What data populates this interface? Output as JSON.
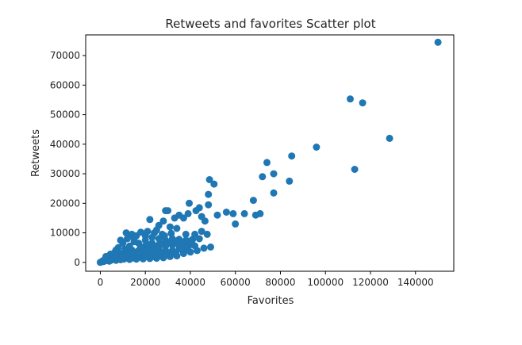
{
  "chart_data": {
    "type": "scatter",
    "title": "Retweets and favorites Scatter plot",
    "xlabel": "Favorites",
    "ylabel": "Retweets",
    "xlim": [
      -6500,
      157000
    ],
    "ylim": [
      -3000,
      77000
    ],
    "xticks": [
      0,
      20000,
      40000,
      60000,
      80000,
      100000,
      120000,
      140000
    ],
    "yticks": [
      0,
      10000,
      20000,
      30000,
      40000,
      50000,
      60000,
      70000
    ],
    "grid": false,
    "marker_color": "#1f77b4",
    "points": [
      [
        150000,
        74500
      ],
      [
        111000,
        55300
      ],
      [
        116500,
        54000
      ],
      [
        128500,
        42000
      ],
      [
        96000,
        39000
      ],
      [
        113000,
        31500
      ],
      [
        85000,
        36000
      ],
      [
        74000,
        33800
      ],
      [
        72000,
        29000
      ],
      [
        77000,
        30000
      ],
      [
        77000,
        23500
      ],
      [
        84000,
        27500
      ],
      [
        68000,
        21000
      ],
      [
        69000,
        16000
      ],
      [
        71000,
        16500
      ],
      [
        64000,
        16500
      ],
      [
        59000,
        16500
      ],
      [
        56000,
        17000
      ],
      [
        52000,
        16000
      ],
      [
        60000,
        13000
      ],
      [
        48500,
        28000
      ],
      [
        50500,
        26500
      ],
      [
        48000,
        23000
      ],
      [
        48000,
        19500
      ],
      [
        44000,
        18500
      ],
      [
        42500,
        17500
      ],
      [
        39000,
        16500
      ],
      [
        39500,
        20000
      ],
      [
        45000,
        15500
      ],
      [
        46500,
        14000
      ],
      [
        37000,
        15000
      ],
      [
        35000,
        16000
      ],
      [
        29000,
        17500
      ],
      [
        30000,
        17500
      ],
      [
        33000,
        15000
      ],
      [
        22000,
        14500
      ],
      [
        28000,
        14000
      ],
      [
        26000,
        12500
      ],
      [
        31000,
        12000
      ],
      [
        25000,
        11000
      ],
      [
        11500,
        10000
      ],
      [
        38000,
        9500
      ],
      [
        42000,
        9500
      ],
      [
        45000,
        10500
      ],
      [
        47500,
        9500
      ],
      [
        34000,
        11500
      ],
      [
        27500,
        9500
      ],
      [
        20000,
        9000
      ],
      [
        16000,
        9000
      ],
      [
        14000,
        9500
      ],
      [
        12000,
        8000
      ],
      [
        20000,
        7500
      ],
      [
        23000,
        8500
      ],
      [
        26000,
        8000
      ],
      [
        29000,
        7500
      ],
      [
        32000,
        8000
      ],
      [
        35000,
        7800
      ],
      [
        38000,
        7500
      ],
      [
        41000,
        7800
      ],
      [
        44000,
        8000
      ],
      [
        17000,
        6500
      ],
      [
        20000,
        5500
      ],
      [
        23000,
        6500
      ],
      [
        26000,
        6000
      ],
      [
        29000,
        5500
      ],
      [
        32000,
        5800
      ],
      [
        35000,
        5800
      ],
      [
        38000,
        6000
      ],
      [
        41000,
        6000
      ],
      [
        15000,
        7000
      ],
      [
        10000,
        6500
      ],
      [
        13000,
        5500
      ],
      [
        8000,
        5000
      ],
      [
        11000,
        4500
      ],
      [
        14000,
        4200
      ],
      [
        17000,
        4000
      ],
      [
        20000,
        4500
      ],
      [
        23000,
        4800
      ],
      [
        26000,
        4500
      ],
      [
        29000,
        4000
      ],
      [
        32000,
        4000
      ],
      [
        35000,
        4500
      ],
      [
        38000,
        4500
      ],
      [
        24500,
        3500
      ],
      [
        27500,
        3000
      ],
      [
        30500,
        3200
      ],
      [
        33500,
        3000
      ],
      [
        18500,
        3000
      ],
      [
        21500,
        3200
      ],
      [
        15500,
        2800
      ],
      [
        12500,
        2500
      ],
      [
        9500,
        3000
      ],
      [
        6500,
        3500
      ],
      [
        7500,
        2500
      ],
      [
        4500,
        2800
      ],
      [
        5500,
        1800
      ],
      [
        8500,
        1500
      ],
      [
        11500,
        1800
      ],
      [
        14500,
        1500
      ],
      [
        17500,
        1800
      ],
      [
        20500,
        2000
      ],
      [
        23500,
        2000
      ],
      [
        26500,
        2200
      ],
      [
        29500,
        2400
      ],
      [
        3000,
        1500
      ],
      [
        2000,
        1000
      ],
      [
        1000,
        500
      ],
      [
        500,
        200
      ],
      [
        0,
        0
      ],
      [
        1500,
        300
      ],
      [
        2500,
        600
      ],
      [
        3500,
        900
      ],
      [
        4000,
        400
      ],
      [
        5000,
        800
      ],
      [
        6000,
        1200
      ],
      [
        7000,
        700
      ],
      [
        9000,
        900
      ],
      [
        10500,
        1100
      ],
      [
        13000,
        1000
      ],
      [
        16000,
        1100
      ],
      [
        19000,
        1200
      ],
      [
        22000,
        1300
      ],
      [
        25000,
        1400
      ],
      [
        28000,
        1600
      ],
      [
        31000,
        2000
      ],
      [
        34000,
        2200
      ],
      [
        37000,
        3000
      ],
      [
        40000,
        3500
      ],
      [
        43000,
        4000
      ],
      [
        46000,
        4800
      ],
      [
        49000,
        5200
      ],
      [
        36000,
        5000
      ],
      [
        39000,
        5400
      ],
      [
        42000,
        5600
      ],
      [
        11000,
        3200
      ],
      [
        13500,
        3600
      ],
      [
        16500,
        3400
      ],
      [
        19500,
        3800
      ],
      [
        22500,
        4000
      ],
      [
        25500,
        4200
      ],
      [
        18000,
        5200
      ],
      [
        21000,
        6000
      ],
      [
        24000,
        5400
      ],
      [
        27000,
        6200
      ],
      [
        30000,
        6800
      ],
      [
        33000,
        6600
      ],
      [
        36000,
        7000
      ],
      [
        39000,
        7200
      ],
      [
        28500,
        9000
      ],
      [
        31500,
        9800
      ],
      [
        24000,
        10000
      ],
      [
        21000,
        10500
      ],
      [
        18000,
        10200
      ],
      [
        15000,
        8200
      ],
      [
        9000,
        7500
      ],
      [
        7000,
        4200
      ],
      [
        6000,
        2200
      ],
      [
        10000,
        2200
      ],
      [
        12000,
        3000
      ],
      [
        2500,
        2000
      ]
    ]
  }
}
